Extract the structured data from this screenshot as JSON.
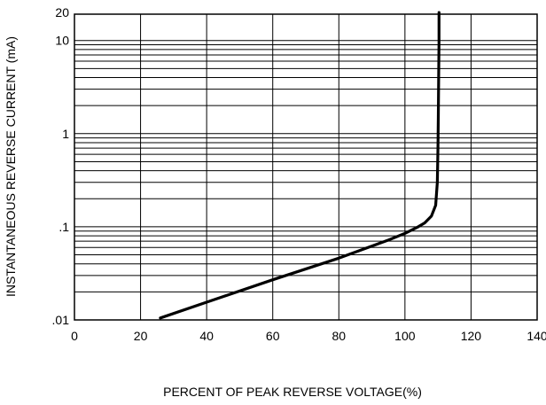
{
  "chart_data": {
    "type": "line",
    "title": "",
    "xlabel": "PERCENT OF PEAK REVERSE VOLTAGE(%)",
    "ylabel": "INSTANTANEOUS REVERSE CURRENT (mA)",
    "x_scale": "linear",
    "y_scale": "log",
    "xlim": [
      0,
      140
    ],
    "ylim": [
      0.01,
      20
    ],
    "x_ticks": [
      0,
      20,
      40,
      60,
      80,
      100,
      120,
      140
    ],
    "x_tick_labels": [
      "0",
      "20",
      "40",
      "60",
      "80",
      "100",
      "120",
      "140"
    ],
    "y_ticks": [
      0.01,
      0.1,
      1,
      10,
      20
    ],
    "y_tick_labels": [
      ".01",
      ".1",
      "1",
      "10",
      "20"
    ],
    "grid": true,
    "legend": "none",
    "series": [
      {
        "x": [
          26,
          40,
          60,
          80,
          95,
          100,
          104,
          106,
          108,
          109.3,
          109.8,
          110,
          110.1,
          110.2,
          110.3,
          110.3
        ],
        "y": [
          0.0105,
          0.0155,
          0.027,
          0.046,
          0.072,
          0.085,
          0.1,
          0.11,
          0.13,
          0.17,
          0.3,
          0.7,
          1.5,
          4,
          10,
          20
        ],
        "color": "#000000"
      }
    ]
  }
}
